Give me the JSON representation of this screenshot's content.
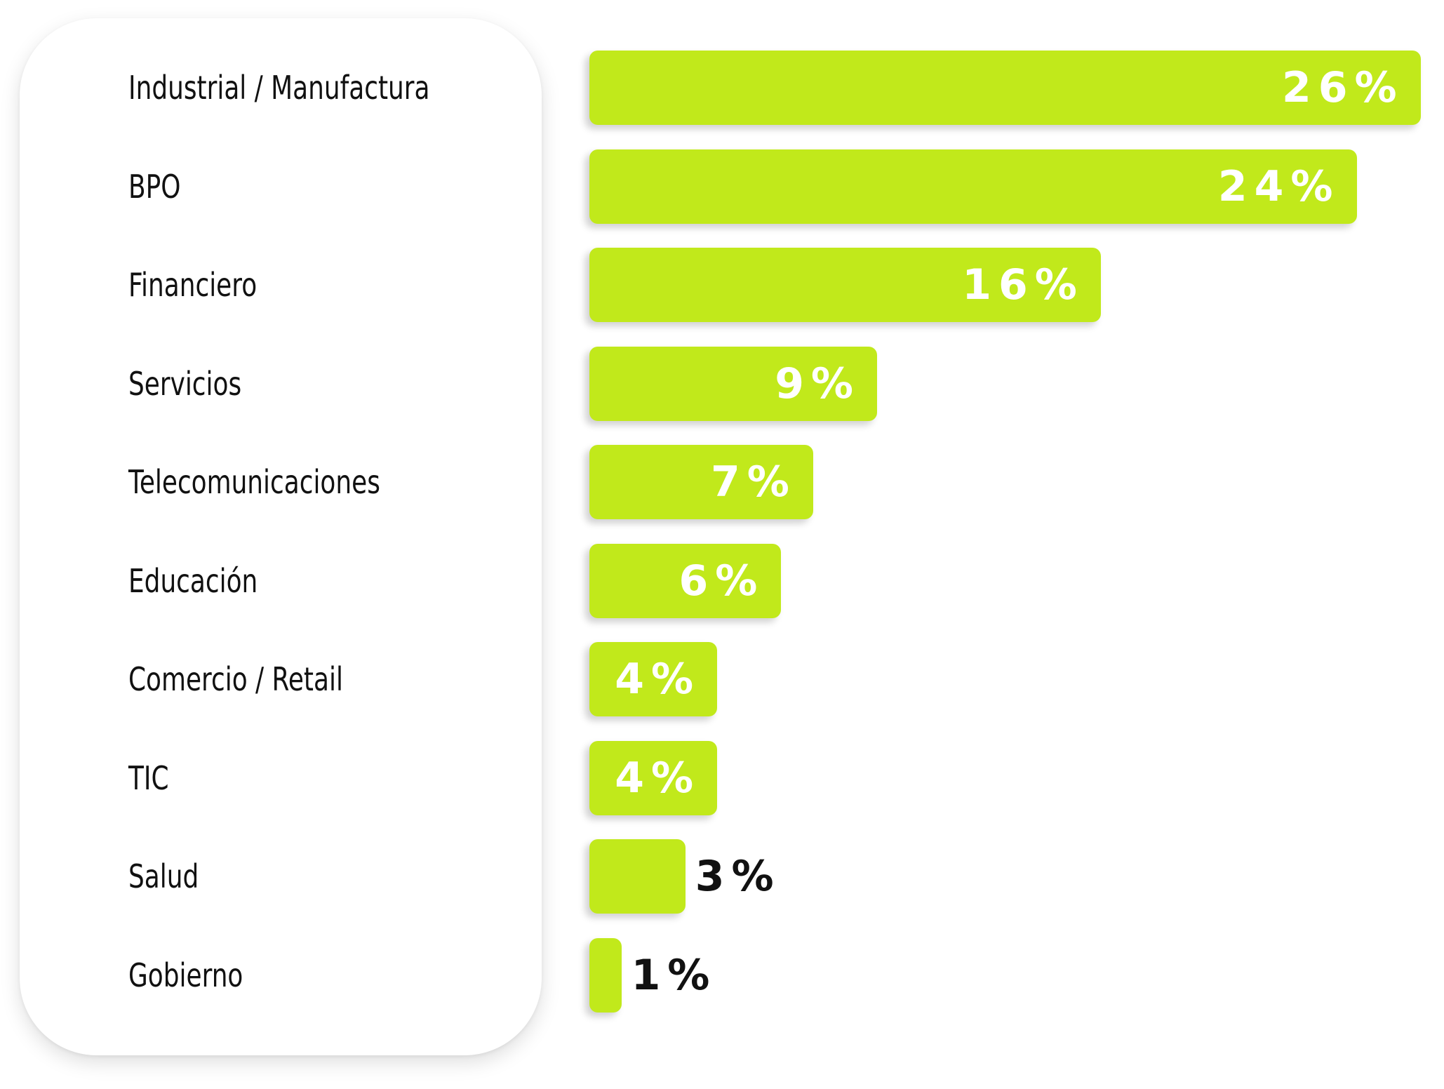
{
  "chart_data": {
    "type": "bar",
    "orientation": "horizontal",
    "categories": [
      "Industrial / Manufactura",
      "BPO",
      "Financiero",
      "Servicios",
      "Telecomunicaciones",
      "Educación",
      "Comercio / Retail",
      "TIC",
      "Salud",
      "Gobierno"
    ],
    "values": [
      26,
      24,
      16,
      9,
      7,
      6,
      4,
      4,
      3,
      1
    ],
    "value_labels": [
      "26%",
      "24%",
      "16%",
      "9%",
      "7%",
      "6%",
      "4%",
      "4%",
      "3%",
      "1%"
    ],
    "xlim": [
      0,
      26
    ],
    "grid": false,
    "bar_color": "#C1E91B",
    "label_color": "#FFFFFF",
    "outside_label_color": "#111111"
  }
}
